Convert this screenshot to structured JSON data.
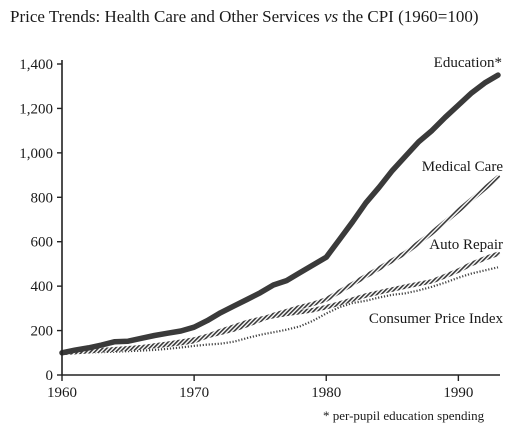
{
  "chart_data": {
    "type": "line",
    "title": "Price Trends: Health Care and Other Services",
    "title_vs": "vs",
    "title_suffix": "the CPI (1960=100)",
    "footnote": "* per-pupil education spending",
    "xlim": [
      1960,
      1993
    ],
    "ylim": [
      0,
      1400
    ],
    "x_ticks": [
      {
        "value": 1960,
        "label": "1960"
      },
      {
        "value": 1970,
        "label": "1970"
      },
      {
        "value": 1980,
        "label": "1980"
      },
      {
        "value": 1990,
        "label": "1990"
      }
    ],
    "y_ticks": [
      {
        "value": 0,
        "label": "0"
      },
      {
        "value": 200,
        "label": "200"
      },
      {
        "value": 400,
        "label": "400"
      },
      {
        "value": 600,
        "label": "600"
      },
      {
        "value": 800,
        "label": "800"
      },
      {
        "value": 1000,
        "label": "1,000"
      },
      {
        "value": 1200,
        "label": "1,200"
      },
      {
        "value": 1400,
        "label": "1,400"
      }
    ],
    "grid": false,
    "x": [
      1960,
      1961,
      1962,
      1963,
      1964,
      1965,
      1966,
      1967,
      1968,
      1969,
      1970,
      1971,
      1972,
      1973,
      1974,
      1975,
      1976,
      1977,
      1978,
      1979,
      1980,
      1981,
      1982,
      1983,
      1984,
      1985,
      1986,
      1987,
      1988,
      1989,
      1990,
      1991,
      1992,
      1993
    ],
    "series": [
      {
        "name": "Education*",
        "style": "solid-thick",
        "color": "#3a3a3a",
        "values": [
          100,
          112,
          122,
          135,
          150,
          152,
          165,
          178,
          188,
          198,
          215,
          245,
          280,
          310,
          340,
          370,
          405,
          425,
          460,
          495,
          530,
          610,
          690,
          775,
          845,
          920,
          985,
          1050,
          1100,
          1160,
          1215,
          1270,
          1315,
          1350
        ]
      },
      {
        "name": "Medical Care",
        "style": "hatched",
        "color": "#555555",
        "values": [
          100,
          103,
          107,
          111,
          114,
          118,
          124,
          133,
          141,
          150,
          160,
          175,
          190,
          205,
          225,
          248,
          270,
          287,
          305,
          320,
          340,
          375,
          410,
          445,
          480,
          515,
          550,
          595,
          640,
          690,
          740,
          790,
          840,
          890
        ]
      },
      {
        "name": "Auto Repair",
        "style": "hatched",
        "color": "#555555",
        "values": [
          100,
          104,
          108,
          112,
          116,
          120,
          125,
          130,
          136,
          143,
          152,
          175,
          198,
          218,
          238,
          252,
          265,
          275,
          283,
          292,
          305,
          322,
          340,
          358,
          372,
          385,
          398,
          410,
          422,
          445,
          470,
          500,
          525,
          545
        ]
      },
      {
        "name": "Consumer Price Index",
        "style": "dotted",
        "color": "#444444",
        "values": [
          100,
          101,
          102,
          103,
          105,
          107,
          110,
          113,
          118,
          124,
          131,
          137,
          141,
          150,
          166,
          181,
          192,
          204,
          219,
          244,
          277,
          305,
          324,
          334,
          349,
          361,
          368,
          381,
          397,
          416,
          438,
          457,
          471,
          485
        ]
      }
    ]
  }
}
